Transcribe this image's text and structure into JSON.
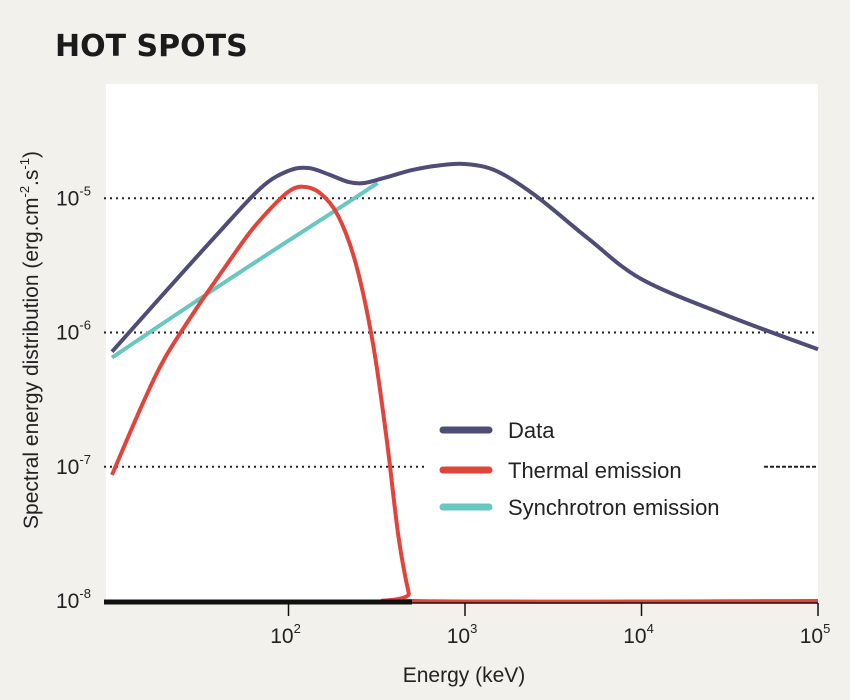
{
  "colors": {
    "page_bg": "#f3f1eb",
    "plot_bg": "#ffffff",
    "data": "#4e4d78",
    "thermal": "#e0443a",
    "synchrotron": "#68c7c0",
    "grid": "#222222",
    "baseline": "#111111"
  },
  "chart_data": {
    "type": "line",
    "title": "HOT SPOTS",
    "xlabel": "Energy (keV)",
    "ylabel": "Spectral energy distribution (erg.cm-2.s-1)",
    "ylabel_parts": {
      "base": "Spectral energy distribution (erg.cm",
      "e1": "-2",
      "mid": ".s",
      "e2": "-1",
      "end": ")"
    },
    "x_scale": "log",
    "y_scale": "log",
    "xlim": [
      10,
      100000
    ],
    "ylim": [
      1e-08,
      0.0001
    ],
    "x_ticks": [
      {
        "value": 100,
        "base": "10",
        "exp": "2"
      },
      {
        "value": 1000,
        "base": "10",
        "exp": "3"
      },
      {
        "value": 10000,
        "base": "10",
        "exp": "4"
      },
      {
        "value": 100000,
        "base": "10",
        "exp": "5"
      }
    ],
    "y_ticks": [
      {
        "value": 1e-05,
        "base": "10",
        "exp": "-5"
      },
      {
        "value": 1e-06,
        "base": "10",
        "exp": "-6"
      },
      {
        "value": 1e-07,
        "base": "10",
        "exp": "-7"
      },
      {
        "value": 1e-08,
        "base": "10",
        "exp": "-8"
      }
    ],
    "grid": "horizontal dotted at y ticks",
    "legend_position": "lower-right",
    "series": [
      {
        "name": "Data",
        "color": "#4e4d78",
        "x": [
          10,
          20,
          40,
          70,
          100,
          130,
          170,
          220,
          270,
          350,
          500,
          700,
          1000,
          1500,
          2500,
          5000,
          10000,
          30000,
          100000
        ],
        "y": [
          7.2e-07,
          2e-06,
          5.5e-06,
          1.2e-05,
          1.6e-05,
          1.68e-05,
          1.5e-05,
          1.32e-05,
          1.3e-05,
          1.42e-05,
          1.62e-05,
          1.75e-05,
          1.8e-05,
          1.6e-05,
          1.05e-05,
          5e-06,
          2.5e-06,
          1.35e-06,
          7.5e-07
        ]
      },
      {
        "name": "Thermal emission",
        "color": "#e0443a",
        "x": [
          10,
          15,
          20,
          30,
          40,
          60,
          80,
          100,
          120,
          150,
          190,
          240,
          300,
          360,
          420,
          480,
          510,
          100000
        ],
        "y": [
          8.7e-08,
          3e-07,
          6.5e-07,
          1.5e-06,
          2.6e-06,
          5.5e-06,
          8.5e-06,
          1.12e-05,
          1.22e-05,
          1.1e-05,
          7.5e-06,
          3.3e-06,
          8.5e-07,
          1.6e-07,
          3e-08,
          1.15e-08,
          1e-08,
          1e-08
        ]
      },
      {
        "name": "Synchrotron emission",
        "color": "#68c7c0",
        "x": [
          10,
          20,
          40,
          80,
          150,
          250,
          320
        ],
        "y": [
          6.5e-07,
          1.2e-06,
          2.2e-06,
          4e-06,
          6.8e-06,
          1.05e-05,
          1.3e-05
        ]
      }
    ]
  }
}
